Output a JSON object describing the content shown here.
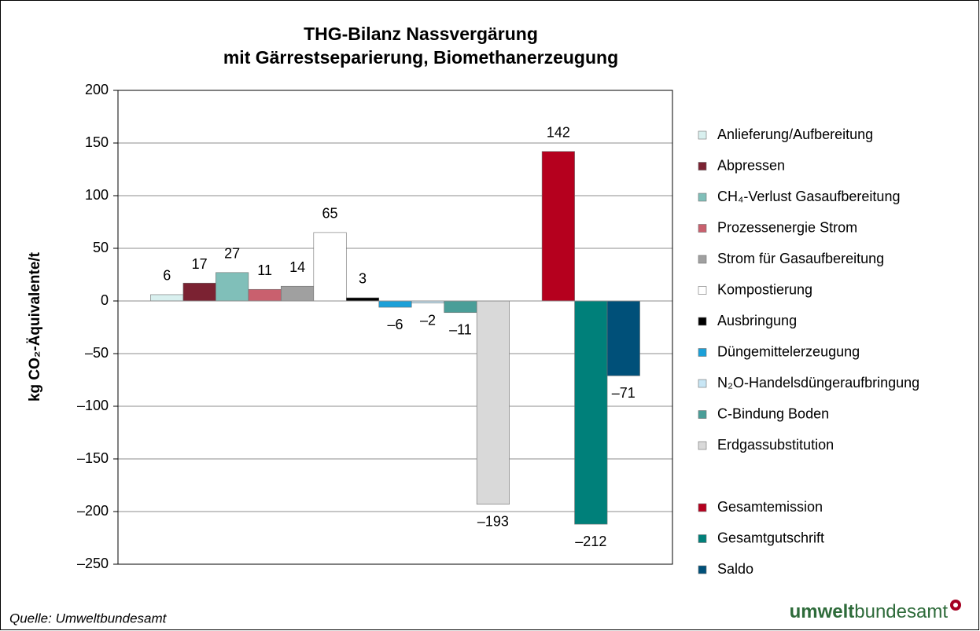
{
  "chart_data": {
    "type": "bar",
    "title": "THG-Bilanz Nassvergärung",
    "subtitle": "mit Gärrestseparierung, Biomethanerzeugung",
    "y_label": "kg CO₂-Äquivalente/t",
    "source": "Quelle: Umweltbundesamt",
    "logo": [
      "umwelt",
      "bundesamt"
    ],
    "ylim": [
      -250,
      200
    ],
    "yticks": [
      {
        "value": -250,
        "label": "–250"
      },
      {
        "value": -200,
        "label": "–200"
      },
      {
        "value": -150,
        "label": "–150"
      },
      {
        "value": -100,
        "label": "–100"
      },
      {
        "value": -50,
        "label": "–50"
      },
      0,
      50,
      100,
      150,
      200
    ],
    "grid": true,
    "legend": "right",
    "series": [
      {
        "name": "Anlieferung/Aufbereitung",
        "color": "#d9f0ef",
        "values": [
          6
        ]
      },
      {
        "name": "Abpressen",
        "color": "#7b2232",
        "values": [
          17
        ]
      },
      {
        "name": "CH₄-Verlust Gasaufbereitung",
        "color": "#80bfb9",
        "values": [
          27
        ]
      },
      {
        "name": "Prozessenergie Strom",
        "color": "#c9606e",
        "values": [
          11
        ]
      },
      {
        "name": "Strom für Gasaufbereitung",
        "color": "#a0a0a0",
        "values": [
          14
        ]
      },
      {
        "name": "Kompostierung",
        "color": "#ffffff",
        "values": [
          65
        ]
      },
      {
        "name": "Ausbringung",
        "color": "#000000",
        "values": [
          3
        ]
      },
      {
        "name": "Düngemittelerzeugung",
        "color": "#1ba0d8",
        "values": [
          -6
        ],
        "value_labels": [
          "–6"
        ]
      },
      {
        "name": "N₂O-Handelsdüngeraufbringung",
        "color": "#c8e6f5",
        "values": [
          -2
        ],
        "value_labels": [
          "–2"
        ]
      },
      {
        "name": "C-Bindung Boden",
        "color": "#4a9e98",
        "values": [
          -11
        ],
        "value_labels": [
          "–11"
        ]
      },
      {
        "name": "Erdgassubstitution",
        "color": "#d9d9d9",
        "values": [
          -193
        ],
        "value_labels": [
          "–193"
        ]
      },
      {
        "name": "Gesamtemission",
        "color": "#b5001e",
        "values": [
          142
        ]
      },
      {
        "name": "Gesamtgutschrift",
        "color": "#00807a",
        "values": [
          -212
        ],
        "value_labels": [
          "–212"
        ]
      },
      {
        "name": "Saldo",
        "color": "#005079",
        "values": [
          -71
        ],
        "value_labels": [
          "–71"
        ]
      }
    ]
  }
}
